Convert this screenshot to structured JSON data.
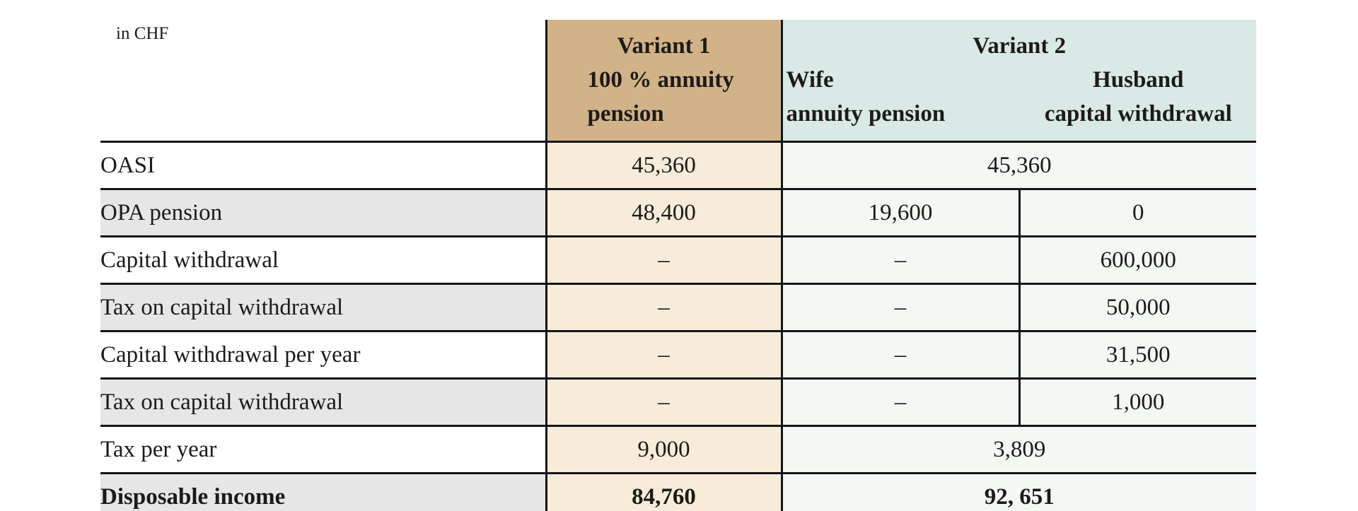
{
  "unit_label": "in CHF",
  "header": {
    "variant1": {
      "title": "Variant 1",
      "line2": "100 % annuity",
      "line3": "pension"
    },
    "variant2": {
      "title": "Variant 2",
      "wife": {
        "name": "Wife",
        "desc": "annuity pension"
      },
      "husband": {
        "name": "Husband",
        "desc": "capital withdrawal"
      }
    }
  },
  "rows": [
    {
      "label": "OASI",
      "v1": "45,360",
      "v2span": "45,360"
    },
    {
      "label": "OPA pension",
      "v1": "48,400",
      "wife": "19,600",
      "husband": "0"
    },
    {
      "label": "Capital withdrawal",
      "v1": "–",
      "wife": "–",
      "husband": "600,000"
    },
    {
      "label": "Tax on capital withdrawal",
      "v1": "–",
      "wife": "–",
      "husband": "50,000"
    },
    {
      "label": "Capital withdrawal per year",
      "v1": "–",
      "wife": "–",
      "husband": "31,500"
    },
    {
      "label": "Tax on capital withdrawal",
      "v1": "–",
      "wife": "–",
      "husband": "1,000"
    },
    {
      "label": "Tax per year",
      "v1": "9,000",
      "v2span": "3,809"
    },
    {
      "label": "Disposable income",
      "v1": "84,760",
      "v2span": "92, 651"
    }
  ],
  "colors": {
    "variant1_header": "#d2b287",
    "variant1_cell": "#f7ecd9",
    "variant2_header": "#d9e9e5",
    "variant2_cell": "#f3f8f5",
    "row_alt_gray": "#e6e6e6",
    "line": "#151515"
  }
}
